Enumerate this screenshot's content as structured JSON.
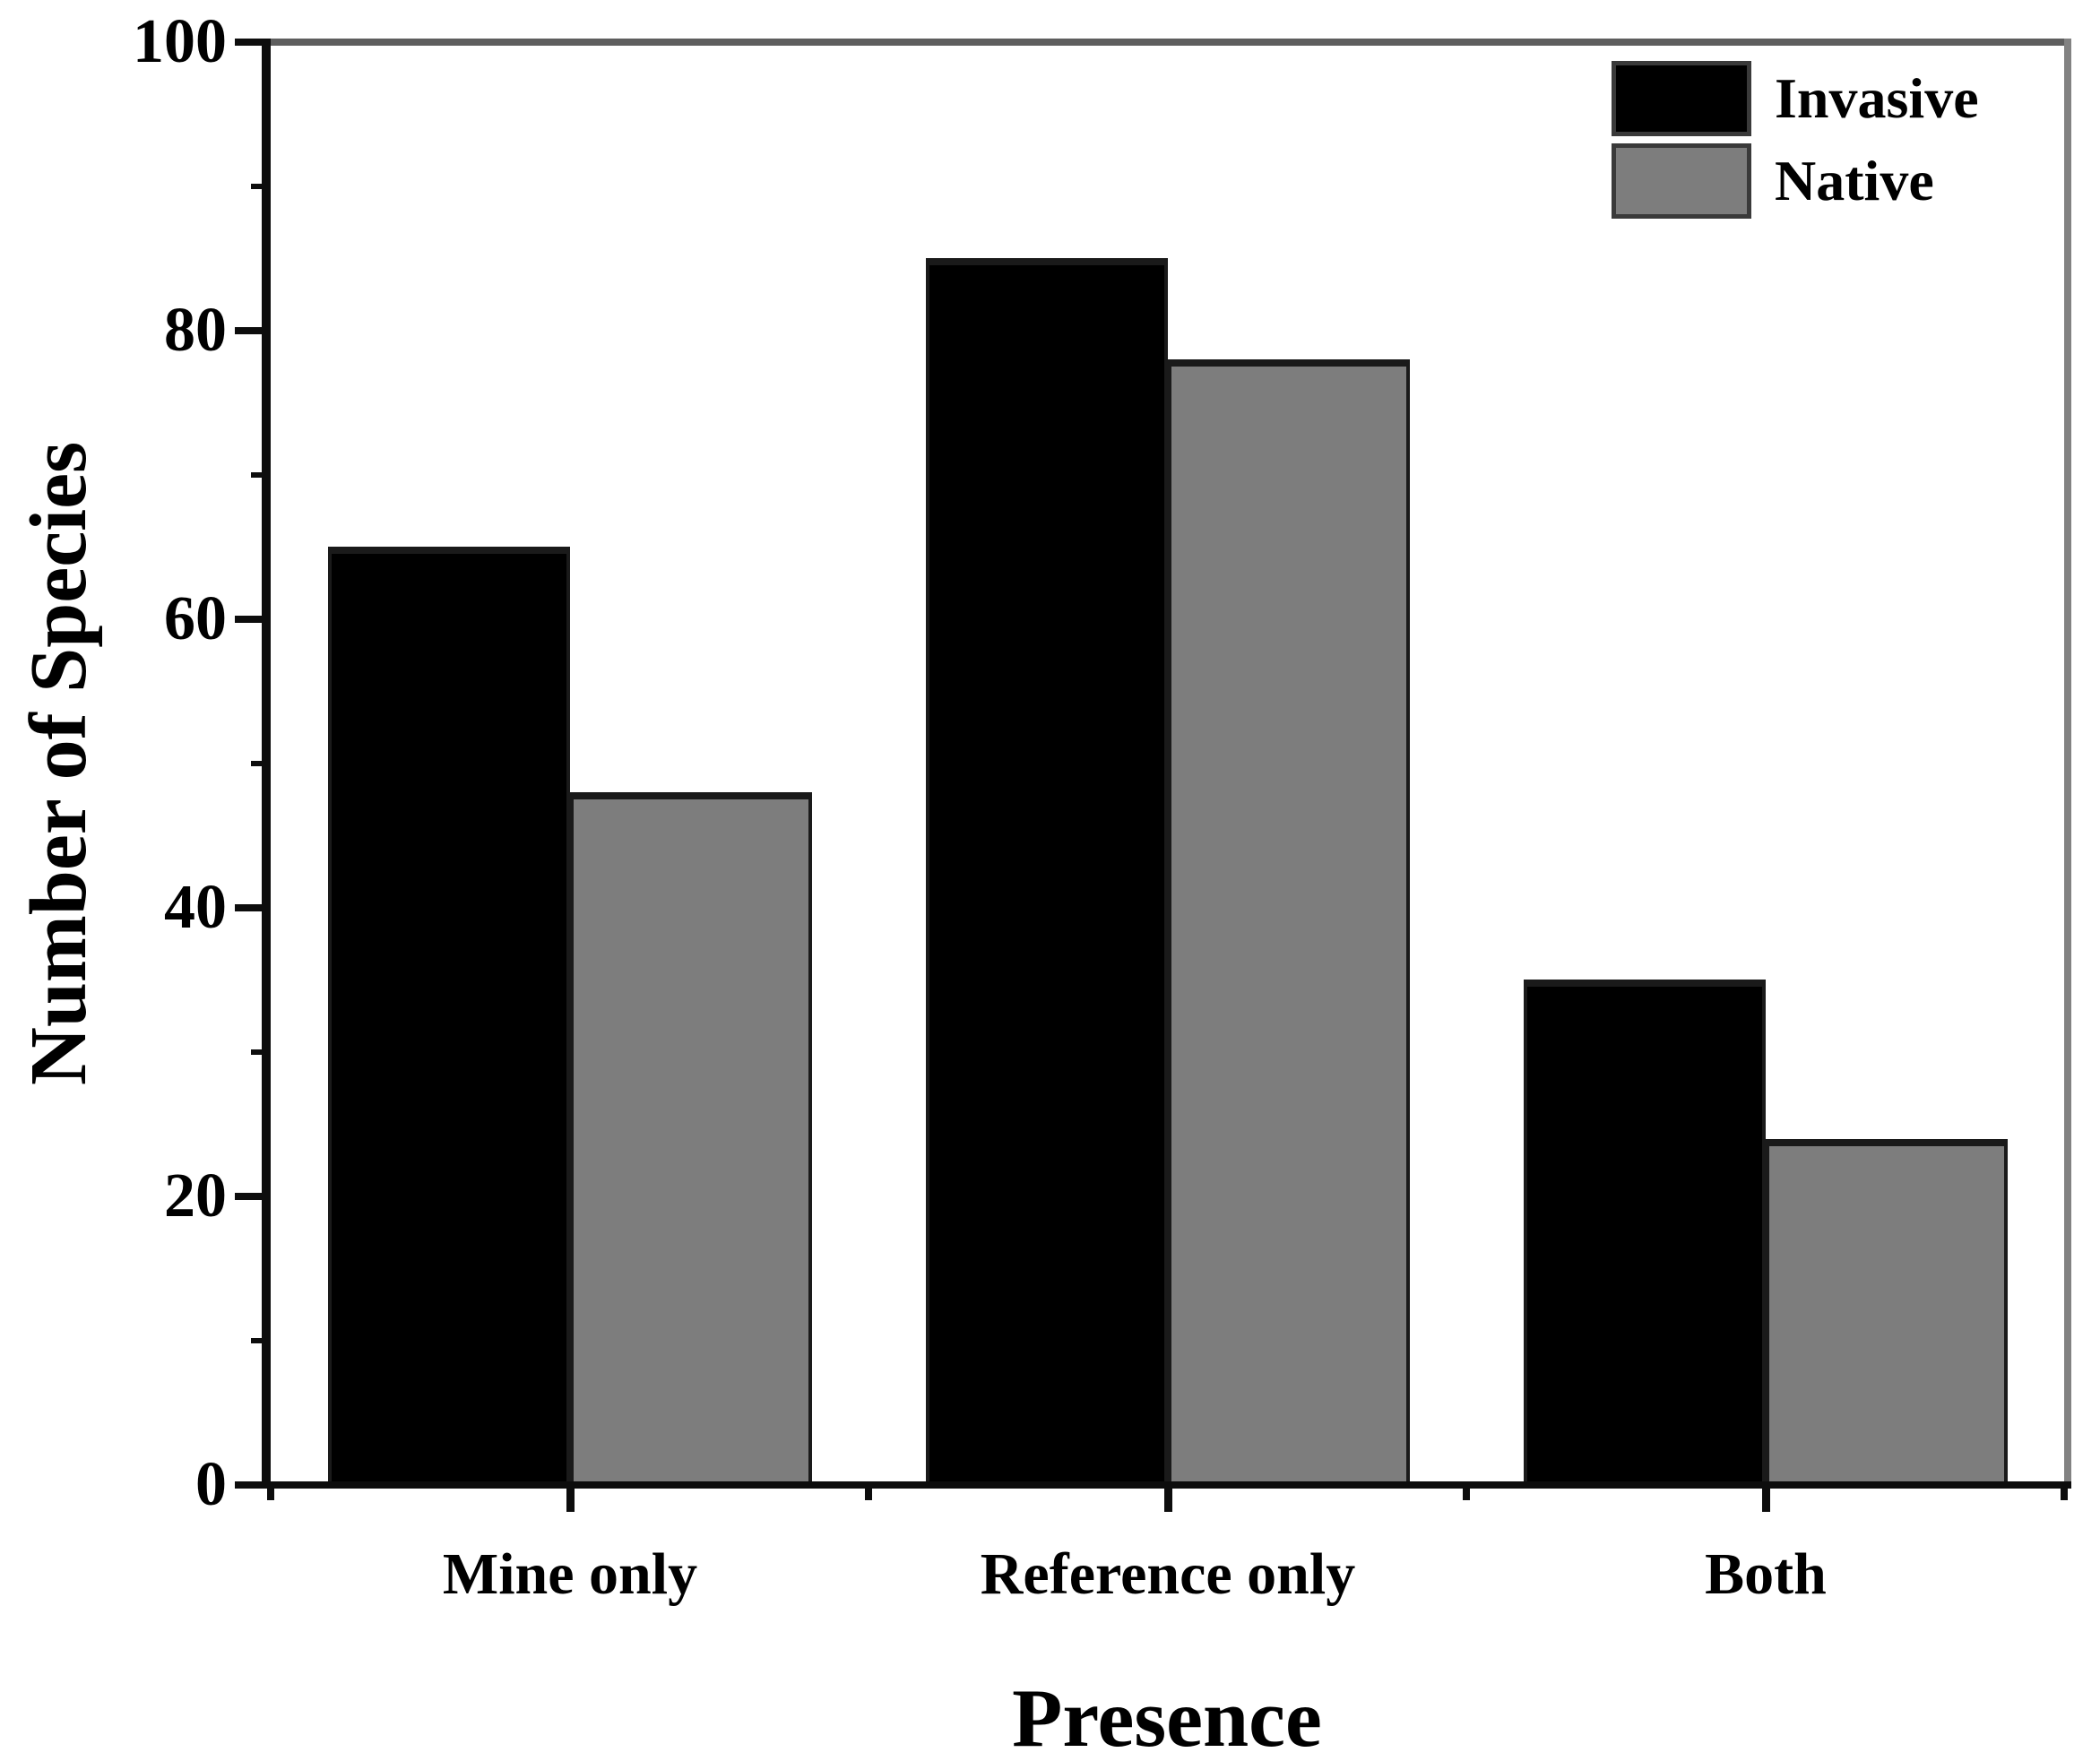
{
  "figure": {
    "background": "#ffffff",
    "text_color": "#000000",
    "axis_color": "#0d0d0d",
    "frame_top_color": "#5e5e5e",
    "frame_right_color": "#828282"
  },
  "chart_data": {
    "type": "bar",
    "title": "",
    "categories": [
      "Mine only",
      "Reference only",
      "Both"
    ],
    "series": [
      {
        "name": "Invasive",
        "color": "#000000",
        "values": [
          65,
          85,
          35
        ]
      },
      {
        "name": "Native",
        "color": "#7d7d7d",
        "values": [
          48,
          78,
          24
        ]
      }
    ],
    "xlabel": "Presence",
    "ylabel": "Number of Species",
    "ylim": [
      0,
      100
    ],
    "yticks": [
      0,
      20,
      40,
      60,
      80,
      100
    ],
    "ytick_step": 20,
    "yminor_step": 10,
    "grid": false,
    "legend_position": "top-right",
    "legend_entries": [
      "Invasive",
      "Native"
    ]
  }
}
